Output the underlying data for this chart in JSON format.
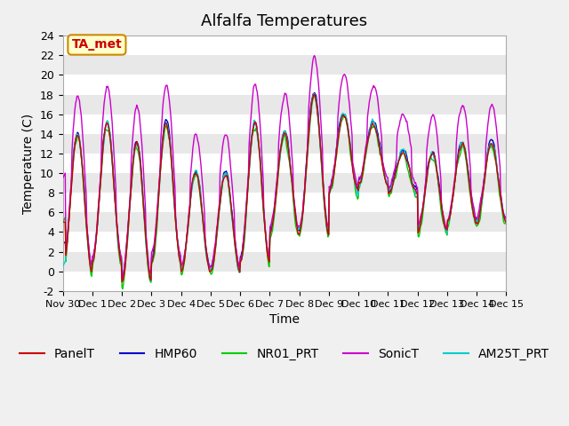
{
  "title": "Alfalfa Temperatures",
  "xlabel": "Time",
  "ylabel": "Temperature (C)",
  "ylim": [
    -2,
    24
  ],
  "yticks": [
    -2,
    0,
    2,
    4,
    6,
    8,
    10,
    12,
    14,
    16,
    18,
    20,
    22,
    24
  ],
  "xtick_labels": [
    "Nov 30",
    "Dec 1",
    "Dec 2",
    "Dec 3",
    "Dec 4",
    "Dec 5",
    "Dec 6",
    "Dec 7",
    "Dec 8",
    "Dec 9",
    "Dec 10",
    "Dec 11",
    "Dec 12",
    "Dec 13",
    "Dec 14",
    "Dec 15"
  ],
  "series_colors": {
    "PanelT": "#cc0000",
    "HMP60": "#0000cc",
    "NR01_PRT": "#00cc00",
    "SonicT": "#cc00cc",
    "AM25T_PRT": "#00cccc"
  },
  "annotation_text": "TA_met",
  "annotation_color": "#cc0000",
  "annotation_bg": "#ffffcc",
  "annotation_border": "#cc8800",
  "plot_bg": "#e8e8e8",
  "title_fontsize": 13,
  "axis_fontsize": 10,
  "tick_fontsize": 9,
  "legend_fontsize": 10
}
